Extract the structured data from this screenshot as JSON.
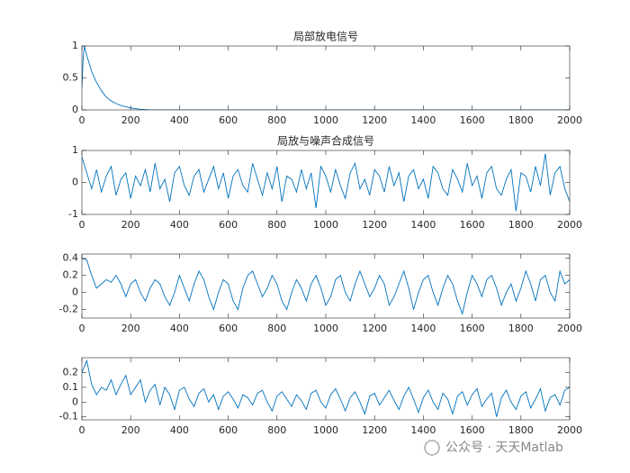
{
  "watermark": "公众号 · 天天Matlab",
  "chart_data": [
    {
      "type": "line",
      "title": "局部放电信号",
      "color": "#0072BD",
      "x": [
        0,
        5,
        10,
        20,
        40,
        60,
        80,
        100,
        120,
        140,
        160,
        180,
        200,
        240,
        280,
        2000
      ],
      "values": [
        0.35,
        0.8,
        1,
        0.85,
        0.6,
        0.43,
        0.3,
        0.2,
        0.14,
        0.1,
        0.07,
        0.05,
        0.03,
        0.01,
        0,
        0
      ],
      "xlim": [
        0,
        2000
      ],
      "xticks": [
        0,
        200,
        400,
        600,
        800,
        1000,
        1200,
        1400,
        1600,
        1800,
        2000
      ],
      "ylim": [
        0,
        1
      ],
      "yticks": [
        0,
        0.5,
        1
      ]
    },
    {
      "type": "line",
      "title": "局放与噪声合成信号",
      "color": "#0072BD",
      "x": [
        0,
        20,
        40,
        60,
        80,
        100,
        120,
        140,
        160,
        180,
        200,
        220,
        240,
        260,
        280,
        300,
        320,
        340,
        360,
        380,
        400,
        420,
        440,
        460,
        480,
        500,
        520,
        540,
        560,
        580,
        600,
        620,
        640,
        660,
        680,
        700,
        720,
        740,
        760,
        780,
        800,
        820,
        840,
        860,
        880,
        900,
        920,
        940,
        960,
        980,
        1000,
        1020,
        1040,
        1060,
        1080,
        1100,
        1120,
        1140,
        1160,
        1180,
        1200,
        1220,
        1240,
        1260,
        1280,
        1300,
        1320,
        1340,
        1360,
        1380,
        1400,
        1420,
        1440,
        1460,
        1480,
        1500,
        1520,
        1540,
        1560,
        1580,
        1600,
        1620,
        1640,
        1660,
        1680,
        1700,
        1720,
        1740,
        1760,
        1780,
        1800,
        1820,
        1840,
        1860,
        1880,
        1900,
        1920,
        1940,
        1960,
        1980,
        2000
      ],
      "values": [
        0.8,
        0.3,
        -0.2,
        0.4,
        -0.3,
        0.2,
        0.5,
        -0.4,
        0.1,
        0.3,
        -0.5,
        0.2,
        -0.1,
        0.4,
        -0.3,
        0.6,
        -0.2,
        0.1,
        -0.6,
        0.3,
        0.5,
        -0.1,
        -0.4,
        0.2,
        0.4,
        -0.3,
        0.1,
        0.5,
        -0.2,
        0.3,
        -0.5,
        0.2,
        0.4,
        -0.1,
        -0.3,
        0.6,
        0.1,
        -0.4,
        0.3,
        -0.2,
        0.5,
        -0.6,
        0.2,
        0.1,
        -0.3,
        0.4,
        -0.2,
        0.3,
        -0.8,
        0.5,
        0.2,
        -0.3,
        0.4,
        -0.1,
        -0.5,
        0.3,
        0.6,
        -0.2,
        0.1,
        -0.4,
        0.4,
        0.2,
        -0.3,
        0.5,
        -0.1,
        0.3,
        -0.6,
        0.2,
        0.4,
        -0.2,
        0.1,
        -0.5,
        0.5,
        0.3,
        -0.2,
        -0.4,
        0.4,
        0.1,
        -0.3,
        0.6,
        -0.1,
        0.2,
        -0.5,
        0.3,
        0.5,
        -0.2,
        -0.4,
        0.1,
        0.4,
        -0.9,
        0.3,
        0.2,
        -0.3,
        0.5,
        -0.1,
        0.9,
        -0.4,
        0.3,
        0.5,
        -0.2,
        -0.6
      ],
      "xlim": [
        0,
        2000
      ],
      "xticks": [
        0,
        200,
        400,
        600,
        800,
        1000,
        1200,
        1400,
        1600,
        1800,
        2000
      ],
      "ylim": [
        -1,
        1
      ],
      "yticks": [
        -1,
        0,
        1
      ]
    },
    {
      "type": "line",
      "color": "#0072BD",
      "x": [
        0,
        20,
        40,
        60,
        80,
        100,
        120,
        140,
        160,
        180,
        200,
        220,
        240,
        260,
        280,
        300,
        320,
        340,
        360,
        380,
        400,
        420,
        440,
        460,
        480,
        500,
        520,
        540,
        560,
        580,
        600,
        620,
        640,
        660,
        680,
        700,
        720,
        740,
        760,
        780,
        800,
        820,
        840,
        860,
        880,
        900,
        920,
        940,
        960,
        980,
        1000,
        1020,
        1040,
        1060,
        1080,
        1100,
        1120,
        1140,
        1160,
        1180,
        1200,
        1220,
        1240,
        1260,
        1280,
        1300,
        1320,
        1340,
        1360,
        1380,
        1400,
        1420,
        1440,
        1460,
        1480,
        1500,
        1520,
        1540,
        1560,
        1580,
        1600,
        1620,
        1640,
        1660,
        1680,
        1700,
        1720,
        1740,
        1760,
        1780,
        1800,
        1820,
        1840,
        1860,
        1880,
        1900,
        1920,
        1940,
        1960,
        1980,
        2000
      ],
      "values": [
        0.4,
        0.38,
        0.2,
        0.05,
        0.1,
        0.15,
        0.12,
        0.2,
        0.1,
        -0.05,
        0.1,
        0.15,
        0.0,
        -0.1,
        0.05,
        0.15,
        0.1,
        -0.05,
        -0.15,
        0.0,
        0.2,
        0.05,
        -0.1,
        0.1,
        0.25,
        0.15,
        -0.05,
        -0.2,
        0.0,
        0.15,
        0.1,
        -0.1,
        -0.2,
        0.05,
        0.2,
        0.25,
        0.1,
        -0.05,
        0.05,
        0.2,
        0.1,
        -0.1,
        -0.2,
        0.0,
        0.15,
        0.05,
        -0.1,
        0.1,
        0.2,
        0.05,
        -0.15,
        -0.05,
        0.15,
        0.2,
        0.0,
        -0.1,
        0.1,
        0.25,
        0.1,
        -0.05,
        0.05,
        0.2,
        0.1,
        -0.15,
        -0.05,
        0.1,
        0.25,
        0.05,
        -0.2,
        0.0,
        0.15,
        0.2,
        0.0,
        -0.15,
        0.05,
        0.2,
        0.1,
        -0.1,
        -0.25,
        0.0,
        0.2,
        0.1,
        -0.05,
        0.15,
        0.2,
        0.05,
        -0.15,
        0.0,
        0.1,
        -0.1,
        0.05,
        0.25,
        0.1,
        -0.1,
        0.15,
        0.2,
        0.0,
        -0.1,
        0.25,
        0.1,
        0.15
      ],
      "xlim": [
        0,
        2000
      ],
      "xticks": [
        0,
        200,
        400,
        600,
        800,
        1000,
        1200,
        1400,
        1600,
        1800,
        2000
      ],
      "ylim": [
        -0.3,
        0.45
      ],
      "yticks": [
        -0.2,
        0,
        0.2,
        0.4
      ]
    },
    {
      "type": "line",
      "color": "#0072BD",
      "x": [
        0,
        20,
        40,
        60,
        80,
        100,
        120,
        140,
        160,
        180,
        200,
        220,
        240,
        260,
        280,
        300,
        320,
        340,
        360,
        380,
        400,
        420,
        440,
        460,
        480,
        500,
        520,
        540,
        560,
        580,
        600,
        620,
        640,
        660,
        680,
        700,
        720,
        740,
        760,
        780,
        800,
        820,
        840,
        860,
        880,
        900,
        920,
        940,
        960,
        980,
        1000,
        1020,
        1040,
        1060,
        1080,
        1100,
        1120,
        1140,
        1160,
        1180,
        1200,
        1220,
        1240,
        1260,
        1280,
        1300,
        1320,
        1340,
        1360,
        1380,
        1400,
        1420,
        1440,
        1460,
        1480,
        1500,
        1520,
        1540,
        1560,
        1580,
        1600,
        1620,
        1640,
        1660,
        1680,
        1700,
        1720,
        1740,
        1760,
        1780,
        1800,
        1820,
        1840,
        1860,
        1880,
        1900,
        1920,
        1940,
        1960,
        1980,
        2000
      ],
      "values": [
        0.2,
        0.28,
        0.12,
        0.05,
        0.1,
        0.08,
        0.15,
        0.05,
        0.12,
        0.18,
        0.05,
        0.1,
        0.15,
        0.0,
        0.08,
        0.12,
        -0.02,
        0.1,
        0.05,
        -0.05,
        0.08,
        0.1,
        0.02,
        -0.03,
        0.06,
        0.09,
        0.0,
        0.05,
        -0.05,
        0.04,
        0.07,
        0.02,
        -0.04,
        0.05,
        0.03,
        -0.02,
        0.06,
        0.08,
        0.0,
        -0.06,
        0.04,
        0.07,
        0.02,
        -0.03,
        0.05,
        0.01,
        -0.05,
        0.06,
        0.08,
        0.0,
        -0.04,
        0.05,
        0.09,
        0.02,
        -0.06,
        0.03,
        0.07,
        0.0,
        -0.08,
        0.04,
        0.06,
        -0.02,
        0.03,
        0.08,
        0.01,
        -0.05,
        0.04,
        0.1,
        0.02,
        -0.07,
        0.03,
        0.08,
        0.0,
        -0.05,
        0.06,
        0.02,
        -0.08,
        0.04,
        0.07,
        -0.02,
        0.05,
        0.09,
        -0.03,
        0.02,
        0.06,
        -0.1,
        0.03,
        0.08,
        0.0,
        -0.05,
        0.04,
        0.07,
        -0.04,
        0.02,
        0.09,
        -0.06,
        0.03,
        0.05,
        -0.02,
        0.08,
        0.1
      ],
      "xlim": [
        0,
        2000
      ],
      "xticks": [
        0,
        200,
        400,
        600,
        800,
        1000,
        1200,
        1400,
        1600,
        1800,
        2000
      ],
      "ylim": [
        -0.12,
        0.3
      ],
      "yticks": [
        -0.1,
        0,
        0.1,
        0.2
      ]
    }
  ]
}
